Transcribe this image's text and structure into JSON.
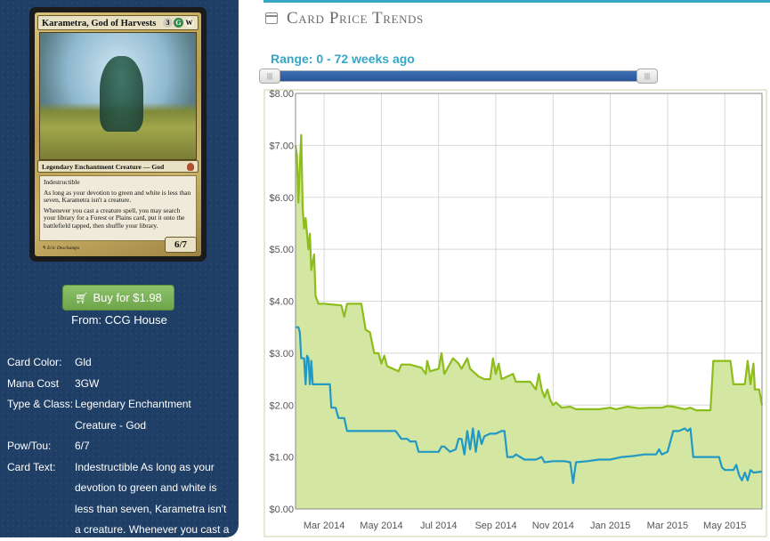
{
  "card": {
    "name": "Karametra, God of Harvests",
    "mana_symbols": [
      "3",
      "G",
      "W"
    ],
    "type_line": "Legendary Enchantment Creature — God",
    "rules_text": [
      "Indestructible",
      "As long as your devotion to green and white is less than seven, Karametra isn't a creature.",
      "Whenever you cast a creature spell, you may search your library for a Forest or Plains card, put it onto the battlefield tapped, then shuffle your library."
    ],
    "power_toughness": "6/7",
    "artist": "Eric Deschamps"
  },
  "buy": {
    "label": "Buy for $1.98",
    "icon": "cart-icon"
  },
  "from": "From: CCG House",
  "details": [
    {
      "label": "Card Color:",
      "value": "Gld"
    },
    {
      "label": "Mana Cost",
      "value": "3GW"
    },
    {
      "label": "Type & Class:",
      "value": "Legendary Enchantment Creature - God"
    },
    {
      "label": "Pow/Tou:",
      "value": "6/7"
    },
    {
      "label": "Card Text:",
      "value": "Indestructible As long as your devotion to green and white is less than seven, Karametra isn't a creature. Whenever you cast a"
    }
  ],
  "section_title": "Card Price Trends",
  "section_icon": "calendar-icon",
  "range_label": "Range: 0 - 72 weeks ago",
  "slider": {
    "handle_glyph": "|||",
    "start_fraction": 0.0,
    "end_fraction": 1.0
  },
  "colors": {
    "accent": "#35a6c6",
    "sidebar": "#1f3f66",
    "button": "#79b356",
    "series_high": "#8dbd1b",
    "series_low": "#2199c4",
    "fill": "#d3e6a2"
  },
  "chart_data": {
    "type": "area",
    "x_ticks": [
      "Mar 2014",
      "May 2014",
      "Jul 2014",
      "Sep 2014",
      "Nov 2014",
      "Jan 2015",
      "Mar 2015",
      "May 2015"
    ],
    "y_ticks": [
      "$0.00",
      "$1.00",
      "$2.00",
      "$3.00",
      "$4.00",
      "$5.00",
      "$6.00",
      "$7.00",
      "$8.00"
    ],
    "ylim": [
      0,
      8
    ],
    "xlim": [
      0,
      16.3
    ],
    "grid": true,
    "series": [
      {
        "color": "#8dbd1b",
        "filled": true,
        "points": [
          [
            0,
            7.0
          ],
          [
            0.05,
            6.8
          ],
          [
            0.1,
            5.9
          ],
          [
            0.15,
            6.6
          ],
          [
            0.2,
            7.2
          ],
          [
            0.25,
            5.8
          ],
          [
            0.3,
            5.4
          ],
          [
            0.35,
            5.6
          ],
          [
            0.45,
            5.0
          ],
          [
            0.5,
            5.3
          ],
          [
            0.55,
            4.6
          ],
          [
            0.65,
            4.9
          ],
          [
            0.7,
            4.1
          ],
          [
            0.8,
            3.95
          ],
          [
            1.0,
            3.95
          ],
          [
            1.6,
            3.92
          ],
          [
            1.7,
            3.7
          ],
          [
            1.8,
            3.95
          ],
          [
            2.1,
            3.95
          ],
          [
            2.3,
            3.95
          ],
          [
            2.45,
            3.45
          ],
          [
            2.6,
            3.4
          ],
          [
            2.75,
            3.0
          ],
          [
            2.9,
            3.0
          ],
          [
            3.0,
            2.8
          ],
          [
            3.1,
            2.95
          ],
          [
            3.2,
            2.75
          ],
          [
            3.4,
            2.7
          ],
          [
            3.6,
            2.65
          ],
          [
            3.7,
            2.78
          ],
          [
            4.0,
            2.78
          ],
          [
            4.2,
            2.75
          ],
          [
            4.4,
            2.72
          ],
          [
            4.55,
            2.6
          ],
          [
            4.6,
            2.85
          ],
          [
            4.7,
            2.65
          ],
          [
            5.0,
            2.7
          ],
          [
            5.1,
            3.0
          ],
          [
            5.2,
            2.6
          ],
          [
            5.3,
            2.7
          ],
          [
            5.5,
            2.9
          ],
          [
            5.7,
            2.8
          ],
          [
            5.8,
            2.7
          ],
          [
            6.0,
            2.9
          ],
          [
            6.1,
            2.7
          ],
          [
            6.3,
            2.6
          ],
          [
            6.4,
            2.55
          ],
          [
            6.6,
            2.5
          ],
          [
            6.8,
            2.5
          ],
          [
            6.9,
            2.9
          ],
          [
            7.0,
            2.6
          ],
          [
            7.1,
            2.8
          ],
          [
            7.2,
            2.5
          ],
          [
            7.4,
            2.55
          ],
          [
            7.6,
            2.6
          ],
          [
            7.7,
            2.45
          ],
          [
            7.9,
            2.45
          ],
          [
            8.2,
            2.45
          ],
          [
            8.4,
            2.3
          ],
          [
            8.5,
            2.6
          ],
          [
            8.6,
            2.3
          ],
          [
            8.7,
            2.15
          ],
          [
            8.8,
            2.3
          ],
          [
            8.9,
            2.1
          ],
          [
            9.0,
            2.0
          ],
          [
            9.1,
            2.05
          ],
          [
            9.3,
            1.95
          ],
          [
            9.6,
            1.97
          ],
          [
            9.8,
            1.92
          ],
          [
            10.2,
            1.92
          ],
          [
            10.6,
            1.92
          ],
          [
            11.0,
            1.95
          ],
          [
            11.2,
            1.92
          ],
          [
            11.6,
            1.97
          ],
          [
            12.0,
            1.94
          ],
          [
            12.4,
            1.95
          ],
          [
            12.8,
            1.95
          ],
          [
            13.0,
            1.98
          ],
          [
            13.2,
            1.97
          ],
          [
            13.6,
            1.92
          ],
          [
            13.8,
            1.95
          ],
          [
            14.0,
            1.9
          ],
          [
            14.2,
            1.9
          ],
          [
            14.5,
            1.9
          ],
          [
            14.6,
            2.85
          ],
          [
            14.8,
            2.85
          ],
          [
            15.0,
            2.85
          ],
          [
            15.2,
            2.85
          ],
          [
            15.3,
            2.4
          ],
          [
            15.5,
            2.4
          ],
          [
            15.7,
            2.4
          ],
          [
            15.8,
            2.85
          ],
          [
            15.9,
            2.4
          ],
          [
            16.0,
            2.8
          ],
          [
            16.05,
            2.3
          ],
          [
            16.2,
            2.3
          ],
          [
            16.3,
            2.0
          ]
        ]
      },
      {
        "color": "#2199c4",
        "filled": false,
        "points": [
          [
            0,
            3.5
          ],
          [
            0.1,
            3.5
          ],
          [
            0.15,
            3.4
          ],
          [
            0.2,
            2.9
          ],
          [
            0.3,
            2.9
          ],
          [
            0.35,
            2.4
          ],
          [
            0.4,
            2.95
          ],
          [
            0.45,
            2.9
          ],
          [
            0.5,
            2.4
          ],
          [
            0.55,
            2.85
          ],
          [
            0.6,
            2.4
          ],
          [
            0.8,
            2.4
          ],
          [
            1.0,
            2.4
          ],
          [
            1.2,
            2.4
          ],
          [
            1.25,
            1.95
          ],
          [
            1.4,
            1.95
          ],
          [
            1.5,
            1.75
          ],
          [
            1.7,
            1.75
          ],
          [
            1.8,
            1.5
          ],
          [
            2.2,
            1.5
          ],
          [
            2.8,
            1.5
          ],
          [
            3.5,
            1.5
          ],
          [
            3.7,
            1.35
          ],
          [
            3.9,
            1.35
          ],
          [
            4.0,
            1.3
          ],
          [
            4.2,
            1.3
          ],
          [
            4.3,
            1.1
          ],
          [
            4.6,
            1.1
          ],
          [
            5.0,
            1.1
          ],
          [
            5.1,
            1.2
          ],
          [
            5.2,
            1.2
          ],
          [
            5.4,
            1.1
          ],
          [
            5.6,
            1.15
          ],
          [
            5.7,
            1.35
          ],
          [
            5.8,
            1.35
          ],
          [
            5.9,
            1.05
          ],
          [
            6.0,
            1.5
          ],
          [
            6.1,
            1.15
          ],
          [
            6.2,
            1.55
          ],
          [
            6.3,
            1.1
          ],
          [
            6.4,
            1.5
          ],
          [
            6.5,
            1.25
          ],
          [
            6.6,
            1.4
          ],
          [
            6.8,
            1.45
          ],
          [
            7.0,
            1.45
          ],
          [
            7.2,
            1.5
          ],
          [
            7.3,
            1.5
          ],
          [
            7.4,
            1.0
          ],
          [
            7.6,
            1.0
          ],
          [
            7.7,
            1.05
          ],
          [
            8.0,
            0.95
          ],
          [
            8.4,
            0.95
          ],
          [
            8.6,
            1.0
          ],
          [
            8.7,
            0.9
          ],
          [
            9.0,
            0.92
          ],
          [
            9.2,
            0.92
          ],
          [
            9.4,
            0.92
          ],
          [
            9.6,
            0.9
          ],
          [
            9.7,
            0.5
          ],
          [
            9.8,
            0.9
          ],
          [
            10.2,
            0.92
          ],
          [
            10.6,
            0.95
          ],
          [
            11.0,
            0.95
          ],
          [
            11.4,
            1.0
          ],
          [
            11.8,
            1.02
          ],
          [
            12.2,
            1.05
          ],
          [
            12.6,
            1.05
          ],
          [
            12.7,
            1.15
          ],
          [
            12.8,
            1.05
          ],
          [
            13.0,
            1.1
          ],
          [
            13.2,
            1.5
          ],
          [
            13.4,
            1.5
          ],
          [
            13.6,
            1.55
          ],
          [
            13.7,
            1.5
          ],
          [
            13.8,
            1.55
          ],
          [
            13.9,
            1.0
          ],
          [
            14.2,
            1.0
          ],
          [
            14.6,
            1.0
          ],
          [
            14.8,
            1.0
          ],
          [
            14.9,
            0.8
          ],
          [
            15.0,
            0.75
          ],
          [
            15.2,
            0.75
          ],
          [
            15.3,
            0.75
          ],
          [
            15.4,
            0.85
          ],
          [
            15.5,
            0.65
          ],
          [
            15.6,
            0.55
          ],
          [
            15.7,
            0.7
          ],
          [
            15.8,
            0.55
          ],
          [
            15.9,
            0.75
          ],
          [
            16.0,
            0.7
          ],
          [
            16.3,
            0.72
          ]
        ]
      }
    ]
  }
}
